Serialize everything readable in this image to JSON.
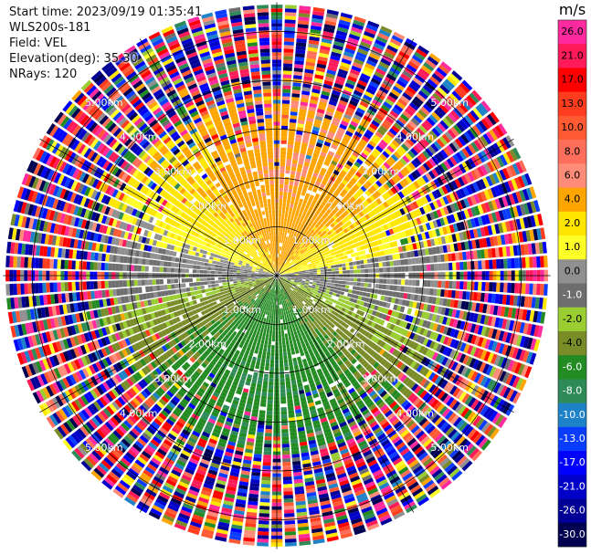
{
  "header": {
    "start_time": "Start time: 2023/09/19 01:35:41",
    "instrument": "WLS200s-181",
    "field": "Field: VEL",
    "elevation": "Elevation(deg): 35.30",
    "nrays": "NRays: 120"
  },
  "chart_data": {
    "type": "polar-ppi",
    "title": "",
    "field": "VEL",
    "elevation_deg": 35.3,
    "nrays": 120,
    "range_rings_km": [
      1.0,
      2.0,
      3.0,
      4.0,
      5.0
    ],
    "range_ring_labels": [
      "1.00km",
      "2.00km",
      "3.00km",
      "4.00km",
      "5.00km"
    ],
    "max_range_km": 5.6,
    "spoke_directions_deg": [
      0,
      30,
      60,
      90,
      120,
      150,
      180,
      210,
      240,
      270,
      300,
      330
    ],
    "colorbar": {
      "unit": "m/s",
      "tick_labels": [
        "26.0",
        "21.0",
        "17.0",
        "13.0",
        "10.0",
        "8.0",
        "6.0",
        "4.0",
        "2.0",
        "1.0",
        "0.0",
        "-1.0",
        "-2.0",
        "-4.0",
        "-6.0",
        "-8.0",
        "-10.0",
        "-13.0",
        "-17.0",
        "-21.0",
        "-26.0",
        "-30.0"
      ],
      "bins": [
        {
          "range": [
            26,
            30
          ],
          "color": "#ff2a9e"
        },
        {
          "range": [
            21,
            26
          ],
          "color": "#ff1a5a"
        },
        {
          "range": [
            17,
            21
          ],
          "color": "#ff0000"
        },
        {
          "range": [
            13,
            17
          ],
          "color": "#ff3c1e"
        },
        {
          "range": [
            10,
            13
          ],
          "color": "#ff5a32"
        },
        {
          "range": [
            8,
            10
          ],
          "color": "#ff6e5a"
        },
        {
          "range": [
            6,
            8
          ],
          "color": "#ff8c78"
        },
        {
          "range": [
            4,
            6
          ],
          "color": "#ffa500"
        },
        {
          "range": [
            2,
            4
          ],
          "color": "#ffe600"
        },
        {
          "range": [
            1,
            2
          ],
          "color": "#ffff28"
        },
        {
          "range": [
            0,
            1
          ],
          "color": "#909090"
        },
        {
          "range": [
            -1,
            0
          ],
          "color": "#6e6e6e"
        },
        {
          "range": [
            -2,
            -1
          ],
          "color": "#9acd32"
        },
        {
          "range": [
            -4,
            -2
          ],
          "color": "#7a8c28"
        },
        {
          "range": [
            -6,
            -4
          ],
          "color": "#228b22"
        },
        {
          "range": [
            -8,
            -6
          ],
          "color": "#2e8b57"
        },
        {
          "range": [
            -10,
            -8
          ],
          "color": "#1e82c8"
        },
        {
          "range": [
            -13,
            -10
          ],
          "color": "#0a3cff"
        },
        {
          "range": [
            -17,
            -13
          ],
          "color": "#0000ff"
        },
        {
          "range": [
            -21,
            -17
          ],
          "color": "#0000c8"
        },
        {
          "range": [
            -26,
            -21
          ],
          "color": "#000096"
        },
        {
          "range": [
            -30,
            -26
          ],
          "color": "#000050"
        }
      ]
    },
    "velocity_structure": {
      "north_sector": "positive 2 to 6 m/s",
      "east_west": "near zero",
      "south_sector": "negative -2 to -6 m/s",
      "outer_ranges": "noise, mixed colors"
    }
  }
}
